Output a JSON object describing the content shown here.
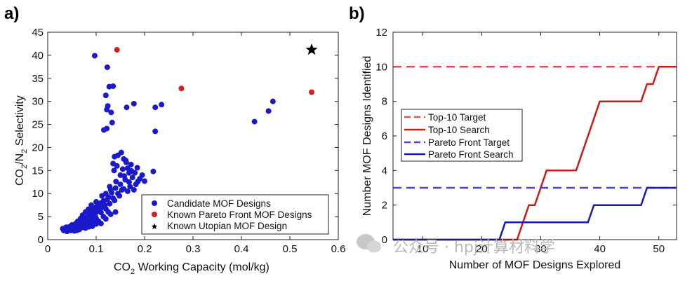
{
  "chart_data": [
    {
      "type": "scatter",
      "panel_label": "a)",
      "title": "",
      "xlabel": {
        "main": "CO",
        "sub": "2",
        "rest": " Working Capacity (mol/kg)"
      },
      "ylabel": {
        "p1": "CO",
        "s1": "2",
        "p2": "/N",
        "s2": "2",
        "p3": " Selectivity"
      },
      "xlim": [
        0,
        0.6
      ],
      "ylim": [
        0,
        45
      ],
      "xticks": [
        "0",
        "0.1",
        "0.2",
        "0.3",
        "0.4",
        "0.5",
        "0.6"
      ],
      "yticks": [
        "0",
        "5",
        "10",
        "15",
        "20",
        "25",
        "30",
        "35",
        "40",
        "45"
      ],
      "legend": {
        "position": "bottom-right",
        "entries": [
          "Candidate MOF Designs",
          "Known Pareto Front MOF Designs",
          "Known Utopian MOF Design"
        ]
      },
      "series": [
        {
          "name": "Candidate MOF Designs",
          "color": "#1a1acc",
          "marker": "circle",
          "points": [
            [
              0.097,
              39.9
            ],
            [
              0.123,
              37.4
            ],
            [
              0.127,
              33.2
            ],
            [
              0.135,
              33.3
            ],
            [
              0.12,
              31.3
            ],
            [
              0.124,
              29.0
            ],
            [
              0.122,
              28.2
            ],
            [
              0.163,
              28.7
            ],
            [
              0.178,
              29.5
            ],
            [
              0.222,
              28.7
            ],
            [
              0.235,
              29.3
            ],
            [
              0.131,
              27.6
            ],
            [
              0.133,
              25.4
            ],
            [
              0.122,
              24.1
            ],
            [
              0.116,
              23.8
            ],
            [
              0.222,
              23.5
            ],
            [
              0.427,
              25.6
            ],
            [
              0.456,
              27.9
            ],
            [
              0.465,
              30.0
            ],
            [
              0.145,
              18.3
            ],
            [
              0.138,
              18.0
            ],
            [
              0.152,
              18.9
            ],
            [
              0.157,
              17.5
            ],
            [
              0.135,
              16.5
            ],
            [
              0.137,
              15.0
            ],
            [
              0.143,
              16.0
            ],
            [
              0.161,
              17.2
            ],
            [
              0.172,
              16.3
            ],
            [
              0.185,
              15.6
            ],
            [
              0.155,
              15.3
            ],
            [
              0.165,
              15.5
            ],
            [
              0.218,
              14.8
            ],
            [
              0.195,
              14.0
            ],
            [
              0.18,
              14.5
            ],
            [
              0.19,
              13.2
            ],
            [
              0.2,
              12.7
            ],
            [
              0.175,
              13.5
            ],
            [
              0.16,
              13.0
            ],
            [
              0.168,
              12.5
            ],
            [
              0.15,
              12.0
            ],
            [
              0.182,
              12.0
            ],
            [
              0.14,
              11.2
            ],
            [
              0.157,
              11.0
            ],
            [
              0.13,
              10.8
            ],
            [
              0.12,
              10.0
            ],
            [
              0.112,
              9.5
            ],
            [
              0.135,
              9.0
            ],
            [
              0.145,
              10.0
            ],
            [
              0.165,
              10.5
            ],
            [
              0.123,
              8.7
            ],
            [
              0.1,
              8.2
            ],
            [
              0.108,
              7.9
            ],
            [
              0.128,
              7.8
            ],
            [
              0.09,
              7.5
            ],
            [
              0.095,
              7.0
            ],
            [
              0.112,
              7.0
            ],
            [
              0.084,
              6.6
            ],
            [
              0.103,
              6.2
            ],
            [
              0.12,
              6.7
            ],
            [
              0.078,
              6.0
            ],
            [
              0.088,
              5.7
            ],
            [
              0.097,
              5.5
            ],
            [
              0.11,
              5.9
            ],
            [
              0.125,
              6.0
            ],
            [
              0.072,
              5.3
            ],
            [
              0.083,
              5.0
            ],
            [
              0.092,
              4.8
            ],
            [
              0.1,
              4.6
            ],
            [
              0.115,
              5.0
            ],
            [
              0.13,
              5.5
            ],
            [
              0.14,
              6.0
            ],
            [
              0.068,
              4.6
            ],
            [
              0.077,
              4.3
            ],
            [
              0.087,
              4.0
            ],
            [
              0.095,
              4.2
            ],
            [
              0.105,
              4.0
            ],
            [
              0.12,
              4.5
            ],
            [
              0.062,
              4.0
            ],
            [
              0.07,
              3.8
            ],
            [
              0.08,
              3.5
            ],
            [
              0.09,
              3.6
            ],
            [
              0.1,
              3.4
            ],
            [
              0.11,
              3.5
            ],
            [
              0.058,
              3.5
            ],
            [
              0.065,
              3.2
            ],
            [
              0.073,
              3.0
            ],
            [
              0.082,
              3.1
            ],
            [
              0.092,
              2.9
            ],
            [
              0.05,
              3.2
            ],
            [
              0.055,
              2.9
            ],
            [
              0.062,
              2.7
            ],
            [
              0.07,
              2.6
            ],
            [
              0.078,
              2.5
            ],
            [
              0.045,
              2.8
            ],
            [
              0.05,
              2.4
            ],
            [
              0.057,
              2.3
            ],
            [
              0.065,
              2.2
            ],
            [
              0.04,
              2.5
            ],
            [
              0.042,
              2.1
            ],
            [
              0.048,
              2.0
            ],
            [
              0.055,
              1.9
            ],
            [
              0.035,
              2.2
            ],
            [
              0.038,
              1.9
            ],
            [
              0.06,
              2.0
            ],
            [
              0.085,
              2.8
            ],
            [
              0.075,
              3.9
            ],
            [
              0.085,
              4.8
            ],
            [
              0.06,
              3.0
            ],
            [
              0.067,
              3.5
            ],
            [
              0.052,
              2.6
            ],
            [
              0.044,
              2.3
            ],
            [
              0.038,
              2.7
            ],
            [
              0.031,
              2.4
            ],
            [
              0.033,
              2.0
            ],
            [
              0.04,
              1.8
            ],
            [
              0.098,
              5.2
            ],
            [
              0.105,
              6.8
            ],
            [
              0.118,
              7.5
            ],
            [
              0.125,
              9.2
            ],
            [
              0.132,
              10.2
            ],
            [
              0.138,
              8.5
            ],
            [
              0.148,
              9.5
            ],
            [
              0.153,
              10.8
            ],
            [
              0.17,
              11.5
            ],
            [
              0.178,
              10.8
            ],
            [
              0.186,
              12.6
            ],
            [
              0.158,
              13.8
            ],
            [
              0.162,
              16.8
            ],
            [
              0.168,
              14.5
            ],
            [
              0.15,
              14.0
            ],
            [
              0.173,
              14.9
            ],
            [
              0.141,
              12.6
            ],
            [
              0.128,
              11.5
            ],
            [
              0.115,
              8.4
            ],
            [
              0.103,
              7.4
            ],
            [
              0.093,
              6.4
            ],
            [
              0.088,
              5.0
            ],
            [
              0.078,
              4.6
            ],
            [
              0.07,
              4.2
            ]
          ]
        },
        {
          "name": "Known Pareto Front MOF Designs",
          "color": "#d42020",
          "marker": "circle",
          "points": [
            [
              0.143,
              41.2
            ],
            [
              0.276,
              32.8
            ],
            [
              0.545,
              32.0
            ]
          ]
        },
        {
          "name": "Known Utopian MOF Design",
          "color": "#000000",
          "marker": "star",
          "points": [
            [
              0.545,
              41.2
            ]
          ]
        }
      ]
    },
    {
      "type": "line",
      "panel_label": "b)",
      "title": "",
      "xlabel": "Number of MOF Designs Explored",
      "ylabel": "Number MOF Designs Identified",
      "xlim": [
        5,
        53
      ],
      "ylim": [
        0,
        12
      ],
      "xticks": [
        "10",
        "20",
        "30",
        "40",
        "50"
      ],
      "yticks": [
        "0",
        "2",
        "4",
        "6",
        "8",
        "10",
        "12"
      ],
      "legend": {
        "position": "center-left",
        "entries": [
          "Top-10 Target",
          "Top-10 Search",
          "Pareto Front Target",
          "Pareto Front Search"
        ]
      },
      "series": [
        {
          "name": "Top-10 Target",
          "color": "#e05050",
          "style": "dashed",
          "x": [
            5,
            53
          ],
          "y": [
            10,
            10
          ]
        },
        {
          "name": "Top-10 Search",
          "color": "#cc1a1a",
          "style": "solid",
          "x": [
            5,
            26,
            27,
            28,
            29,
            30,
            31,
            36,
            37,
            38,
            39,
            40,
            47,
            48,
            49,
            50,
            51,
            52,
            53
          ],
          "y": [
            0,
            0,
            1,
            2,
            2,
            3,
            4,
            4,
            5,
            6,
            7,
            8,
            8,
            9,
            9,
            10,
            10,
            10,
            10
          ]
        },
        {
          "name": "Pareto Front Target",
          "color": "#4545dd",
          "style": "dashed",
          "x": [
            5,
            53
          ],
          "y": [
            3,
            3
          ]
        },
        {
          "name": "Pareto Front Search",
          "color": "#1a1aaa",
          "style": "solid",
          "x": [
            5,
            23,
            24,
            33,
            34,
            38,
            39,
            47,
            48,
            53
          ],
          "y": [
            0,
            0,
            1,
            1,
            1,
            1,
            2,
            2,
            3,
            3
          ]
        }
      ]
    }
  ],
  "watermark": {
    "text": "公众号 · hpj计算材料学"
  }
}
